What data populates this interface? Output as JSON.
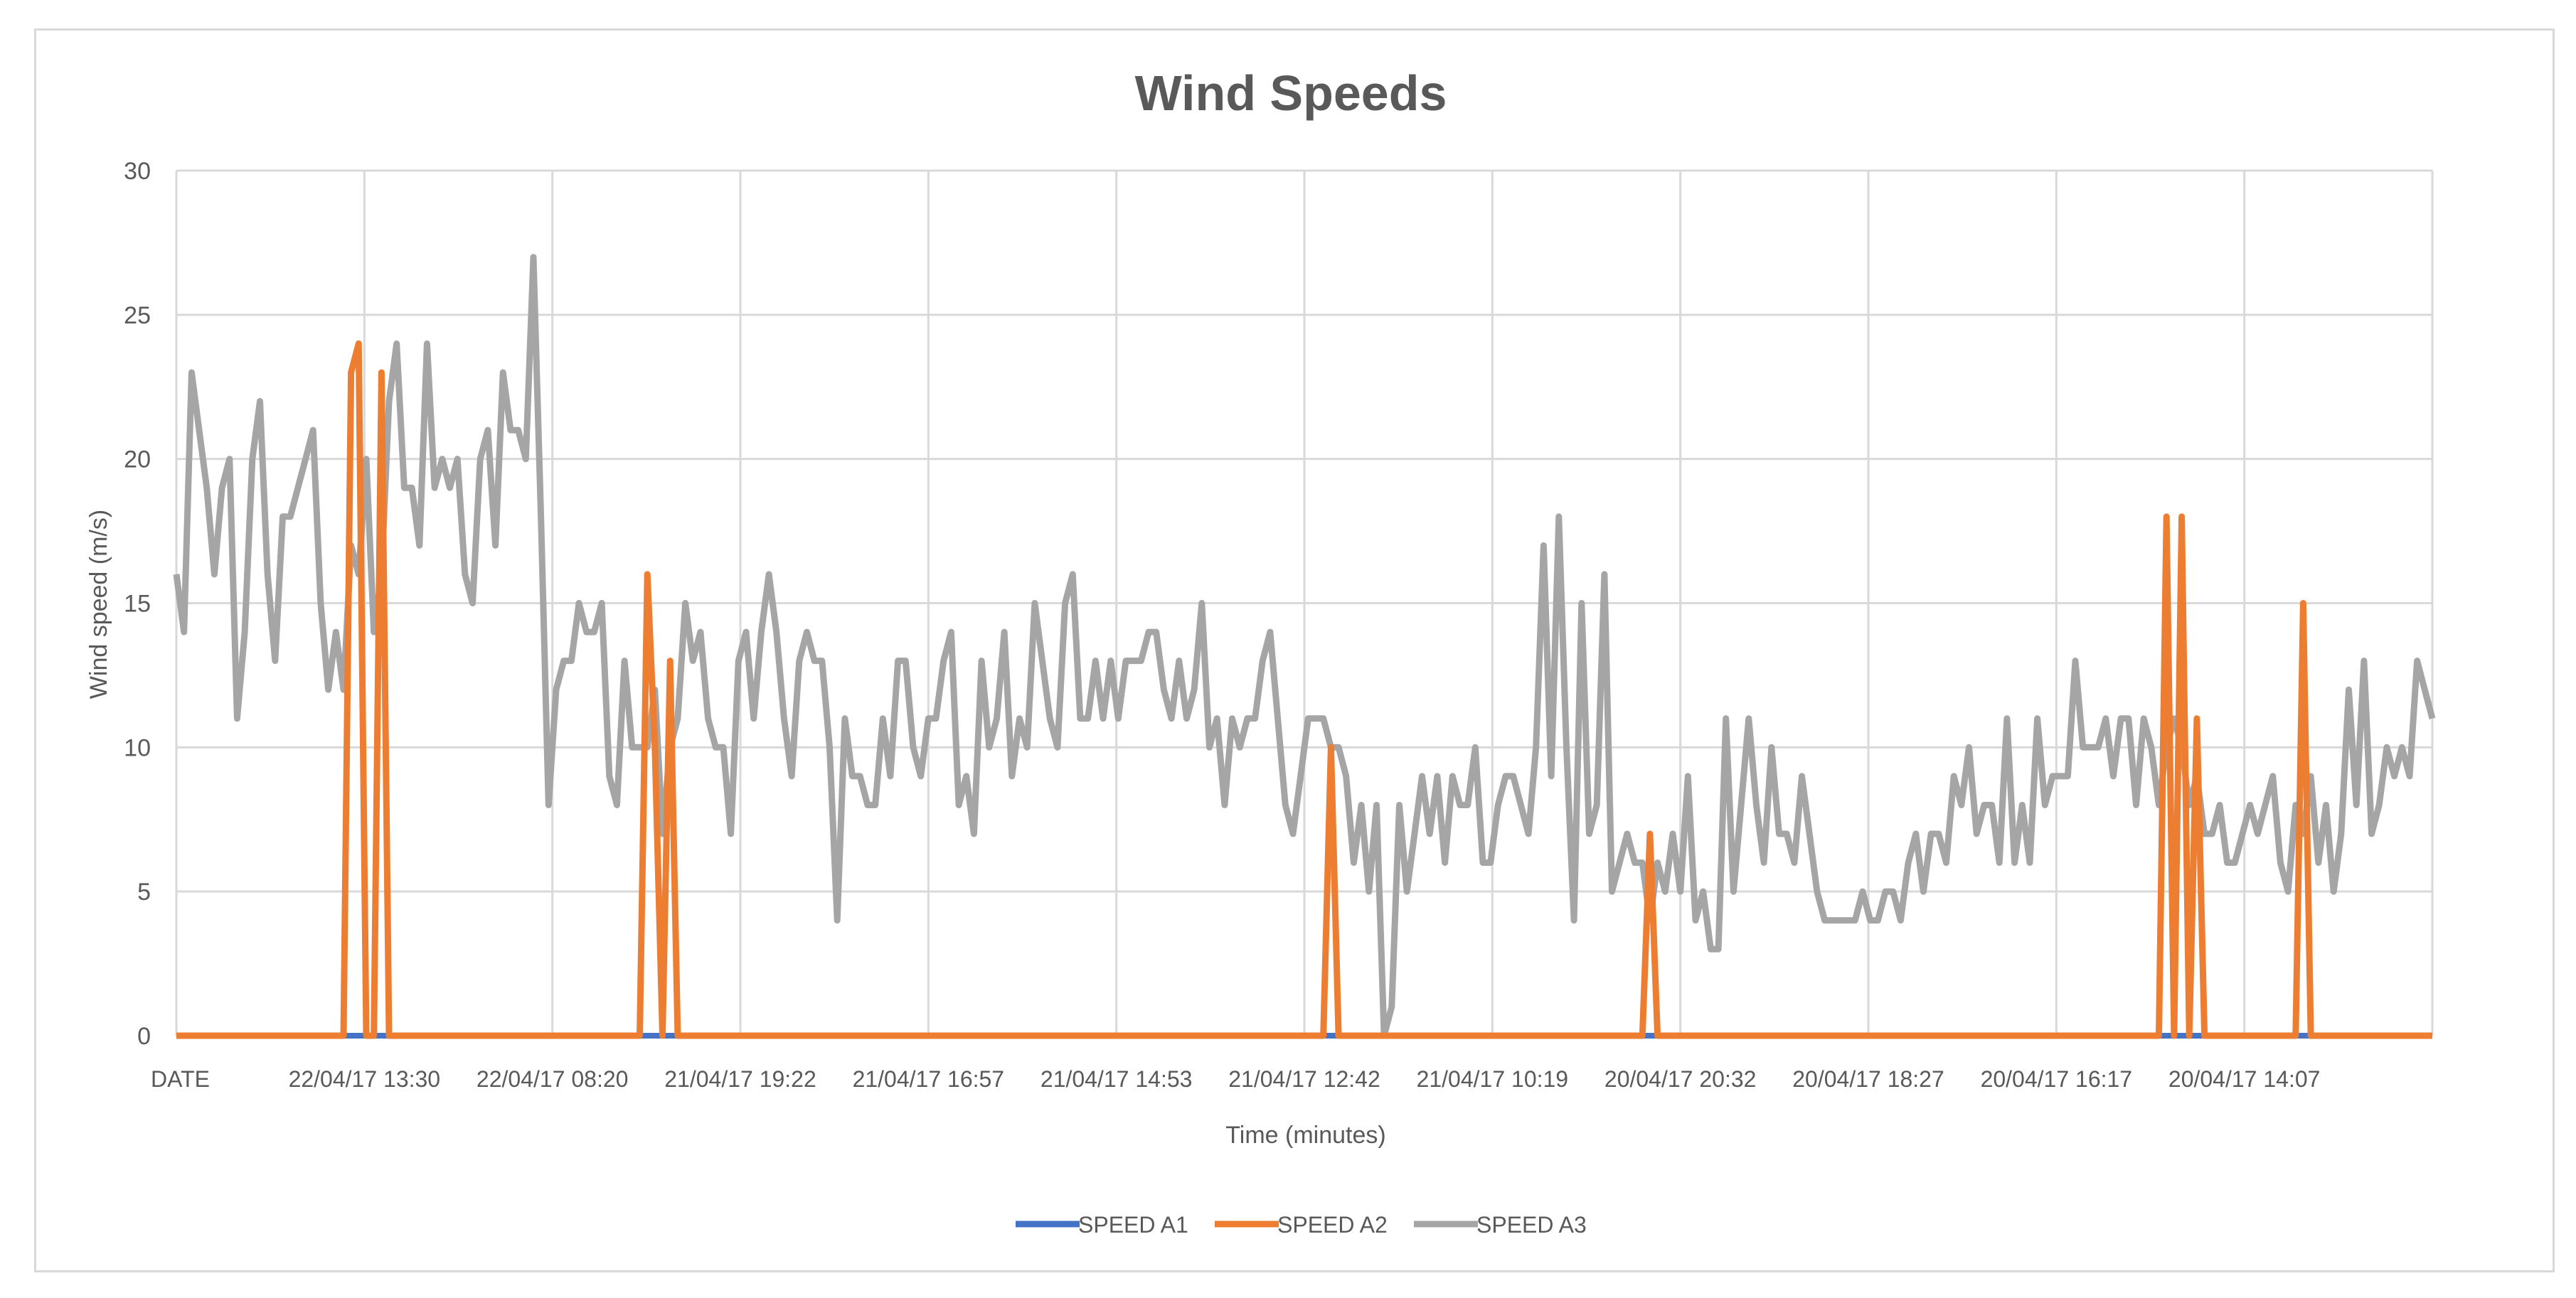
{
  "chart_data": {
    "type": "line",
    "title": "Wind Speeds",
    "xlabel": "Time (minutes)",
    "ylabel": "Wind speed (m/s)",
    "ylim": [
      0,
      30
    ],
    "yticks": [
      0,
      5,
      10,
      15,
      20,
      25,
      30
    ],
    "grid": true,
    "legend_position": "bottom",
    "x_tick_labels": [
      "DATE",
      "22/04/17 13:30",
      "22/04/17 08:20",
      "21/04/17 19:22",
      "21/04/17 16:57",
      "21/04/17 14:53",
      "21/04/17 12:42",
      "21/04/17 10:19",
      "20/04/17 20:32",
      "20/04/17 18:27",
      "20/04/17 16:17",
      "20/04/17 14:07"
    ],
    "colors": {
      "SPEED A1": "#4472C4",
      "SPEED A2": "#ED7D31",
      "SPEED A3": "#A5A5A5"
    },
    "series": [
      {
        "name": "SPEED A1",
        "values": "all zero"
      },
      {
        "name": "SPEED A2",
        "spikes": [
          [
            22,
            0
          ],
          [
            23,
            23
          ],
          [
            24,
            24
          ],
          [
            25,
            0
          ],
          [
            26,
            0
          ],
          [
            27,
            23
          ],
          [
            28,
            0
          ],
          [
            61,
            0
          ],
          [
            62,
            16
          ],
          [
            63,
            10
          ],
          [
            64,
            0
          ],
          [
            65,
            13
          ],
          [
            66,
            0
          ],
          [
            151,
            0
          ],
          [
            152,
            10
          ],
          [
            153,
            0
          ],
          [
            193,
            0
          ],
          [
            194,
            7
          ],
          [
            195,
            0
          ],
          [
            261,
            0
          ],
          [
            262,
            18
          ],
          [
            263,
            0
          ],
          [
            264,
            18
          ],
          [
            265,
            0
          ],
          [
            266,
            11
          ],
          [
            267,
            0
          ],
          [
            279,
            0
          ],
          [
            280,
            15
          ],
          [
            281,
            0
          ]
        ]
      },
      {
        "name": "SPEED A3",
        "values": [
          16,
          14,
          23,
          21,
          19,
          16,
          19,
          20,
          11,
          14,
          20,
          22,
          16,
          13,
          18,
          18,
          19,
          20,
          21,
          15,
          12,
          14,
          12,
          17,
          16,
          20,
          14,
          16,
          22,
          24,
          19,
          19,
          17,
          24,
          19,
          20,
          19,
          20,
          16,
          15,
          20,
          21,
          17,
          23,
          21,
          21,
          20,
          27,
          18,
          8,
          12,
          13,
          13,
          15,
          14,
          14,
          15,
          9,
          8,
          13,
          10,
          10,
          10,
          12,
          7,
          10,
          11,
          15,
          13,
          14,
          11,
          10,
          10,
          7,
          13,
          14,
          11,
          14,
          16,
          14,
          11,
          9,
          13,
          14,
          13,
          13,
          10,
          4,
          11,
          9,
          9,
          8,
          8,
          11,
          9,
          13,
          13,
          10,
          9,
          11,
          11,
          13,
          14,
          8,
          9,
          7,
          13,
          10,
          11,
          14,
          9,
          11,
          10,
          15,
          13,
          11,
          10,
          15,
          16,
          11,
          11,
          13,
          11,
          13,
          11,
          13,
          13,
          13,
          14,
          14,
          12,
          11,
          13,
          11,
          12,
          15,
          10,
          11,
          8,
          11,
          10,
          11,
          11,
          13,
          14,
          11,
          8,
          7,
          9,
          11,
          11,
          11,
          10,
          10,
          9,
          6,
          8,
          5,
          8,
          0,
          1,
          8,
          5,
          7,
          9,
          7,
          9,
          6,
          9,
          8,
          8,
          10,
          6,
          6,
          8,
          9,
          9,
          8,
          7,
          10,
          17,
          9,
          18,
          10,
          4,
          15,
          7,
          8,
          16,
          5,
          6,
          7,
          6,
          6,
          4,
          6,
          5,
          7,
          5,
          9,
          4,
          5,
          3,
          3,
          11,
          5,
          8,
          11,
          8,
          6,
          10,
          7,
          7,
          6,
          9,
          7,
          5,
          4,
          4,
          4,
          4,
          4,
          5,
          4,
          4,
          5,
          5,
          4,
          6,
          7,
          5,
          7,
          7,
          6,
          9,
          8,
          10,
          7,
          8,
          8,
          6,
          11,
          6,
          8,
          6,
          11,
          8,
          9,
          9,
          9,
          13,
          10,
          10,
          10,
          11,
          9,
          11,
          11,
          8,
          11,
          10,
          8,
          10,
          11,
          10,
          8,
          9,
          7,
          7,
          8,
          6,
          6,
          7,
          8,
          7,
          8,
          9,
          6,
          5,
          8,
          7,
          9,
          6,
          8,
          5,
          7,
          12,
          8,
          13,
          7,
          8,
          10,
          9,
          10,
          9,
          13,
          12,
          11
        ]
      }
    ]
  }
}
